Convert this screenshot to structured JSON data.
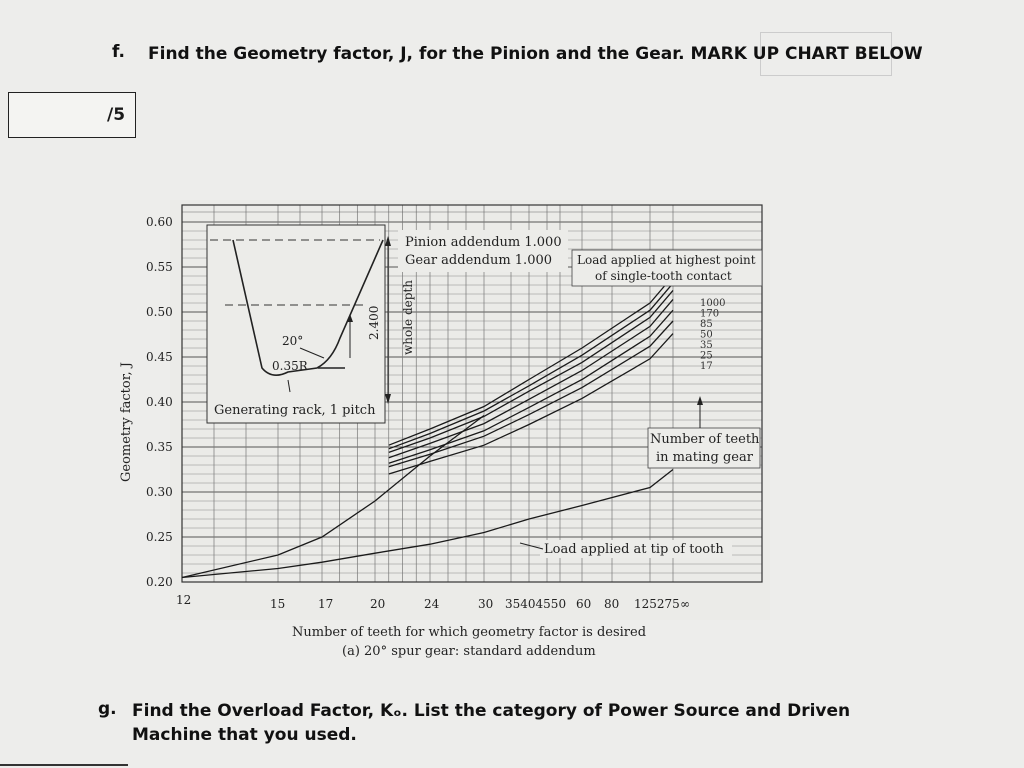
{
  "question_f": {
    "number": "f.",
    "text": "Find the Geometry factor, J, for the Pinion and the Gear. MARK UP CHART BELOW"
  },
  "score": {
    "label": "/5"
  },
  "question_g": {
    "number": "g.",
    "text": "Find the Overload Factor, Kₒ. List the category of Power Source and Driven Machine that you used."
  },
  "chart_data": {
    "type": "line",
    "ylabel": "Geometry factor, J",
    "xlabel": "Number of teeth for which geometry factor is desired",
    "caption": "(a) 20° spur gear: standard addendum",
    "ylim": [
      0.2,
      0.6
    ],
    "y_ticks": [
      "0.20",
      "0.25",
      "0.30",
      "0.35",
      "0.40",
      "0.45",
      "0.50",
      "0.55",
      "0.60"
    ],
    "x_ticks": [
      "12",
      "15",
      "17",
      "20",
      "24",
      "30",
      "35",
      "40",
      "45",
      "50",
      "60",
      "80",
      "125",
      "275",
      "∞"
    ],
    "x_tick_labels_printed": [
      "12",
      "15",
      "17",
      "20",
      "24",
      "30",
      "35404550",
      "60",
      "80",
      "125275",
      "∞"
    ],
    "inset": {
      "addendum_lines": [
        "Pinion addendum 1.000",
        "Gear addendum 1.000"
      ],
      "angle_label": "20°",
      "radius_label": "0.35R",
      "depth_label": "2.400",
      "depth_caption": "whole depth",
      "rack_label": "Generating rack, 1 pitch"
    },
    "annotations": {
      "highest_point": [
        "Load applied at highest point",
        "of single-tooth contact"
      ],
      "mating_gear": [
        "Number of teeth",
        "in mating gear"
      ],
      "tip": "Load applied at tip of tooth"
    },
    "series": [
      {
        "name": "1000",
        "x": [
          21,
          24,
          30,
          40,
          60,
          125,
          275
        ],
        "y": [
          0.352,
          0.37,
          0.395,
          0.425,
          0.46,
          0.51,
          0.54
        ]
      },
      {
        "name": "170",
        "x": [
          21,
          24,
          30,
          40,
          60,
          125,
          275
        ],
        "y": [
          0.348,
          0.365,
          0.39,
          0.418,
          0.452,
          0.502,
          0.532
        ]
      },
      {
        "name": "85",
        "x": [
          21,
          24,
          30,
          40,
          60,
          125,
          275
        ],
        "y": [
          0.344,
          0.36,
          0.384,
          0.412,
          0.444,
          0.494,
          0.524
        ]
      },
      {
        "name": "50",
        "x": [
          21,
          24,
          30,
          40,
          60,
          125,
          275
        ],
        "y": [
          0.338,
          0.354,
          0.376,
          0.403,
          0.435,
          0.484,
          0.514
        ]
      },
      {
        "name": "35",
        "x": [
          21,
          24,
          30,
          40,
          60,
          125,
          275
        ],
        "y": [
          0.332,
          0.347,
          0.368,
          0.394,
          0.425,
          0.473,
          0.502
        ]
      },
      {
        "name": "25",
        "x": [
          21,
          24,
          30,
          40,
          60,
          125,
          275
        ],
        "y": [
          0.328,
          0.342,
          0.362,
          0.386,
          0.416,
          0.462,
          0.49
        ]
      },
      {
        "name": "17",
        "x": [
          21,
          24,
          30,
          40,
          60,
          125,
          275
        ],
        "y": [
          0.32,
          0.334,
          0.352,
          0.375,
          0.404,
          0.448,
          0.476
        ]
      },
      {
        "name": "",
        "x": [
          12,
          15,
          17,
          20,
          24,
          30
        ],
        "y": [
          0.205,
          0.23,
          0.25,
          0.29,
          0.34,
          0.385
        ]
      },
      {
        "name": "",
        "x": [
          12,
          15,
          17,
          20,
          24,
          30,
          40,
          60,
          125,
          275
        ],
        "y": [
          0.205,
          0.215,
          0.222,
          0.232,
          0.242,
          0.255,
          0.27,
          0.285,
          0.305,
          0.325
        ]
      }
    ]
  }
}
